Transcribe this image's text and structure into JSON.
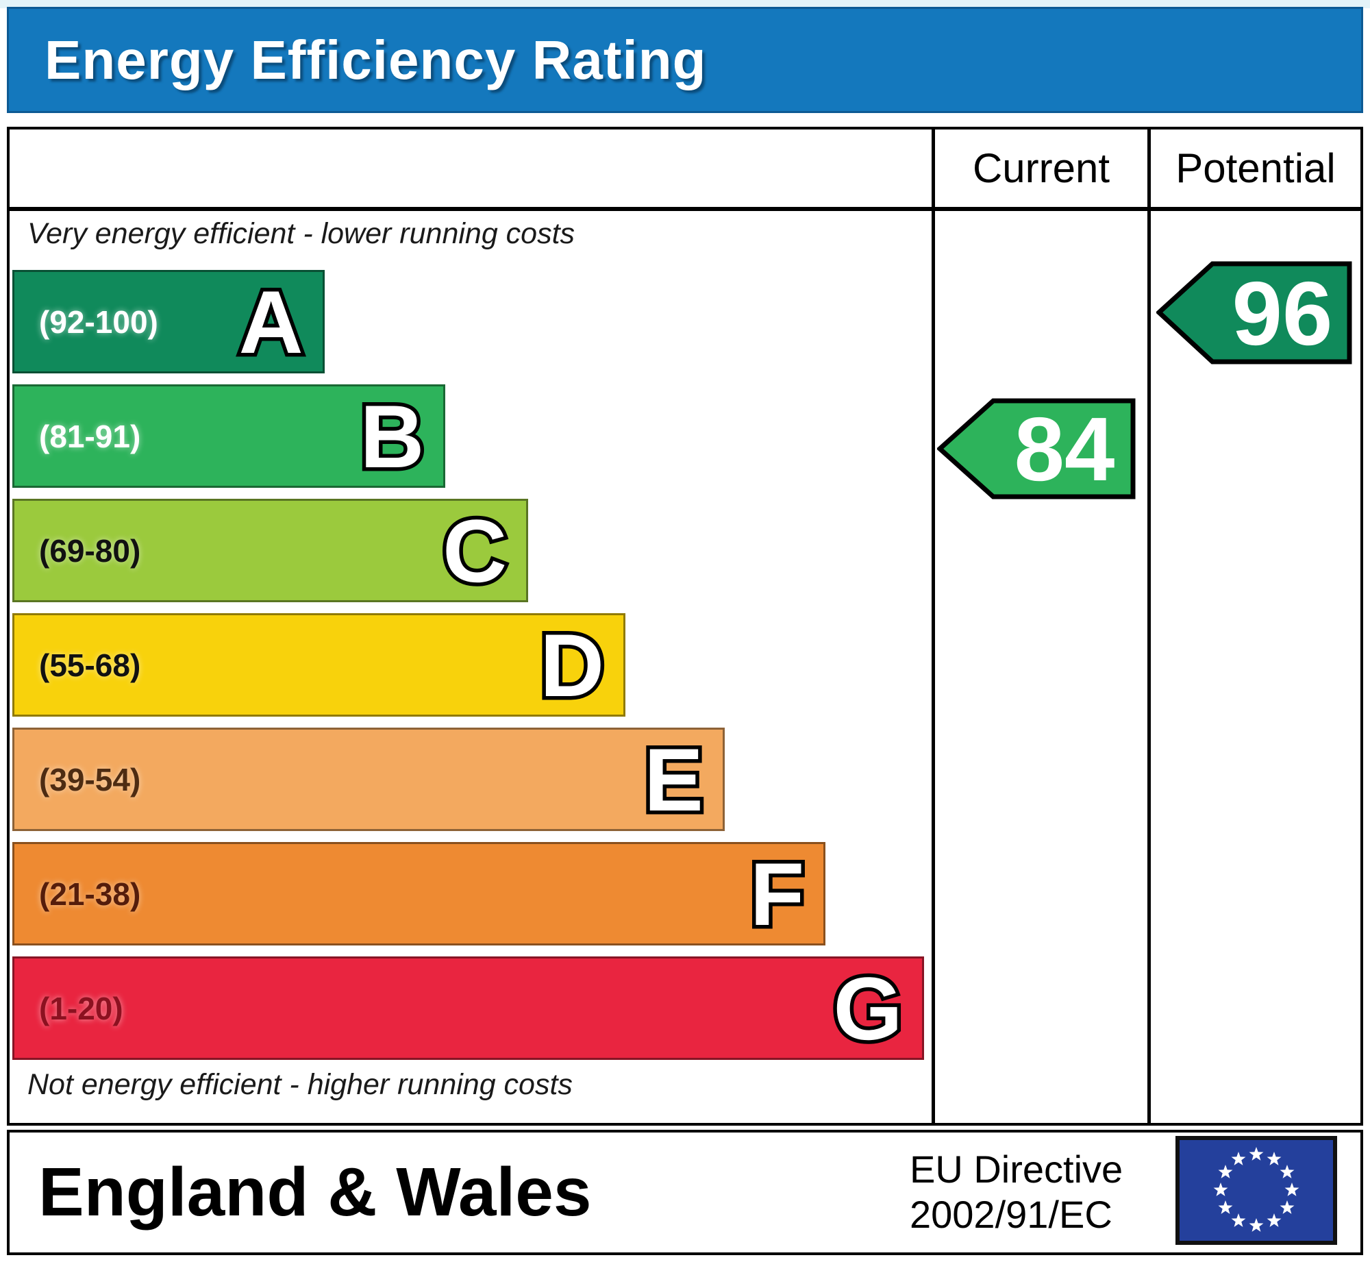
{
  "title": "Energy Efficiency Rating",
  "table": {
    "current_header": "Current",
    "potential_header": "Potential",
    "top_note": "Very energy efficient - lower running costs",
    "bottom_note": "Not energy efficient - higher running costs"
  },
  "bands": [
    {
      "letter": "A",
      "range": "(92-100)",
      "color": "#108a5b",
      "label_color": "#ffffff",
      "width_pct": 34
    },
    {
      "letter": "B",
      "range": "(81-91)",
      "color": "#2db35b",
      "label_color": "#ffffff",
      "width_pct": 47.2
    },
    {
      "letter": "C",
      "range": "(69-80)",
      "color": "#9bca3d",
      "label_color": "#111111",
      "width_pct": 56.2
    },
    {
      "letter": "D",
      "range": "(55-68)",
      "color": "#f8d20c",
      "label_color": "#111111",
      "width_pct": 66.8
    },
    {
      "letter": "E",
      "range": "(39-54)",
      "color": "#f3a95f",
      "label_color": "#4e2c12",
      "width_pct": 77.6
    },
    {
      "letter": "F",
      "range": "(21-38)",
      "color": "#ee8a32",
      "label_color": "#551d0b",
      "width_pct": 88.6
    },
    {
      "letter": "G",
      "range": "(1-20)",
      "color": "#e92540",
      "label_color": "#8c1120",
      "width_pct": 99.3
    }
  ],
  "current": {
    "value": "84",
    "color": "#2db35b"
  },
  "potential": {
    "value": "96",
    "color": "#108a5b"
  },
  "footer": {
    "region": "England & Wales",
    "directive_line1": "EU Directive",
    "directive_line2": "2002/91/EC",
    "eu_flag_blue": "#24409c"
  },
  "chart_data": {
    "type": "bar",
    "title": "Energy Efficiency Rating",
    "categories": [
      "A (92-100)",
      "B (81-91)",
      "C (69-80)",
      "D (55-68)",
      "E (39-54)",
      "F (21-38)",
      "G (1-20)"
    ],
    "values": [
      34,
      47.2,
      56.2,
      66.8,
      77.6,
      88.6,
      99.3
    ],
    "band_colors": [
      "#108a5b",
      "#2db35b",
      "#9bca3d",
      "#f8d20c",
      "#f3a95f",
      "#ee8a32",
      "#e92540"
    ],
    "current_rating": 84,
    "current_band": "B",
    "potential_rating": 96,
    "potential_band": "A",
    "columns": [
      "Current",
      "Potential"
    ],
    "region": "England & Wales",
    "directive": "EU Directive 2002/91/EC",
    "legend_position": "none",
    "grid": false
  }
}
